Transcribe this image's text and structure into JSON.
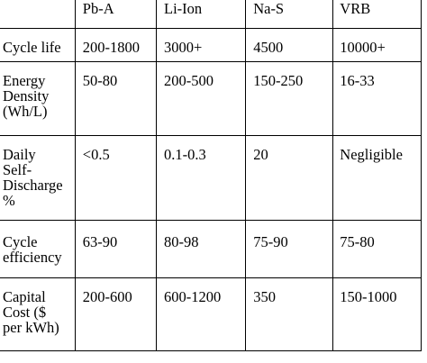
{
  "table": {
    "header": [
      "",
      "Pb-A",
      "Li-Ion",
      "Na-S",
      "VRB"
    ],
    "rows": [
      [
        "Cycle life",
        "200-1800",
        "3000+",
        "4500",
        "10000+"
      ],
      [
        "Energy\nDensity\n(Wh/L)",
        "50-80",
        "200-500",
        "150-250",
        "16-33"
      ],
      [
        "Daily\nSelf-\nDischarge\n%",
        "<0.5",
        "0.1-0.3",
        "20",
        "Negligible"
      ],
      [
        "Cycle\nefficiency",
        "63-90",
        "80-98",
        "75-90",
        "75-80"
      ],
      [
        "Capital\nCost ($\nper kWh)",
        "200-600",
        "600-1200",
        "350",
        "150-1000"
      ]
    ]
  }
}
